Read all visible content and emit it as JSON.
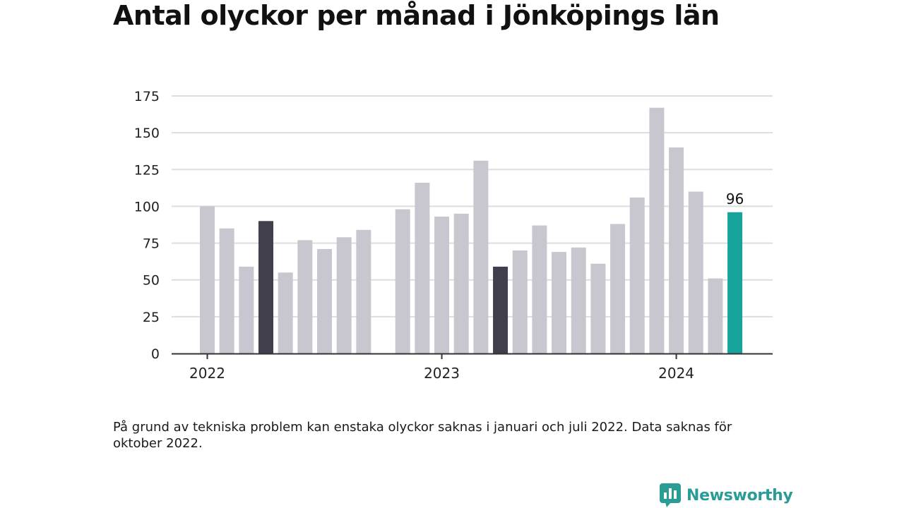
{
  "title": "Antal olyckor per månad i Jönköpings län",
  "note": "På grund av tekniska problem kan enstaka olyckor saknas i januari och juli 2022. Data saknas för oktober 2022.",
  "brand": {
    "name": "Newsworthy"
  },
  "colors": {
    "default_bar": "#c8c7cf",
    "dark_bar": "#403f4b",
    "highlight_bar": "#15a39b",
    "grid": "#dddddd",
    "axis": "#333333",
    "brand": "#2a9c96"
  },
  "chart_data": {
    "type": "bar",
    "title": "Antal olyckor per månad i Jönköpings län",
    "xlabel": "",
    "ylabel": "",
    "ylim": [
      0,
      175
    ],
    "yticks": [
      0,
      25,
      50,
      75,
      100,
      125,
      150,
      175
    ],
    "year_labels": [
      {
        "label": "2022",
        "index": 0
      },
      {
        "label": "2023",
        "index": 12
      },
      {
        "label": "2024",
        "index": 24
      }
    ],
    "series": [
      {
        "values": [
          100,
          85,
          59,
          90,
          55,
          77,
          71,
          79,
          84,
          null,
          98,
          116,
          93,
          95,
          131,
          59,
          70,
          87,
          69,
          72,
          61,
          88,
          106,
          167,
          140,
          110,
          51,
          96
        ],
        "styles": [
          "default",
          "default",
          "default",
          "dark",
          "default",
          "default",
          "default",
          "default",
          "default",
          "missing",
          "default",
          "default",
          "default",
          "default",
          "default",
          "dark",
          "default",
          "default",
          "default",
          "default",
          "default",
          "default",
          "default",
          "default",
          "default",
          "default",
          "default",
          "highlight"
        ]
      }
    ],
    "data_labels": [
      {
        "index": 27,
        "text": "96"
      }
    ],
    "grid": true,
    "legend": "none"
  }
}
